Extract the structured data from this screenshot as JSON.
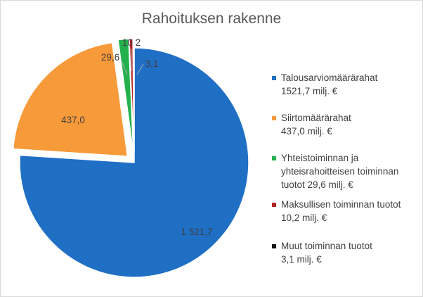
{
  "chart_data": {
    "type": "pie",
    "title": "Rahoituksen rakenne",
    "slices": [
      {
        "label": "Talousarviomäärärahat",
        "value": 1521.7,
        "data_label": "1 521,7",
        "color": "#1f6fc5",
        "exploded": false,
        "legend_lines": [
          "Talousarviomäärärahat",
          "1521,7 milj. €"
        ]
      },
      {
        "label": "Siirtomäärärahat",
        "value": 437.0,
        "data_label": "437,0",
        "color": "#f79a3a",
        "exploded": true,
        "legend_lines": [
          "Siirtomäärärahat",
          "437,0 milj. €"
        ]
      },
      {
        "label": "Yhteistoiminnan ja yhteisrahoitteisen toiminnan tuotot",
        "value": 29.6,
        "data_label": "29,6",
        "color": "#23b14d",
        "exploded": true,
        "legend_lines": [
          "Yhteistoiminnan ja",
          "yhteisrahoitteisen toiminnan",
          "tuotot 29,6 milj. €"
        ]
      },
      {
        "label": "Maksullisen toiminnan tuotot",
        "value": 10.2,
        "data_label": "10,2",
        "color": "#b22222",
        "exploded": true,
        "legend_lines": [
          "Maksullisen toiminnan tuotot",
          "10,2 milj. €"
        ]
      },
      {
        "label": "Muut toiminnan tuotot",
        "value": 3.1,
        "data_label": "3,1",
        "color": "#111111",
        "exploded": true,
        "legend_lines": [
          "Muut toiminnan tuotot",
          "3,1 milj. €"
        ]
      }
    ],
    "legend_position": "right"
  }
}
